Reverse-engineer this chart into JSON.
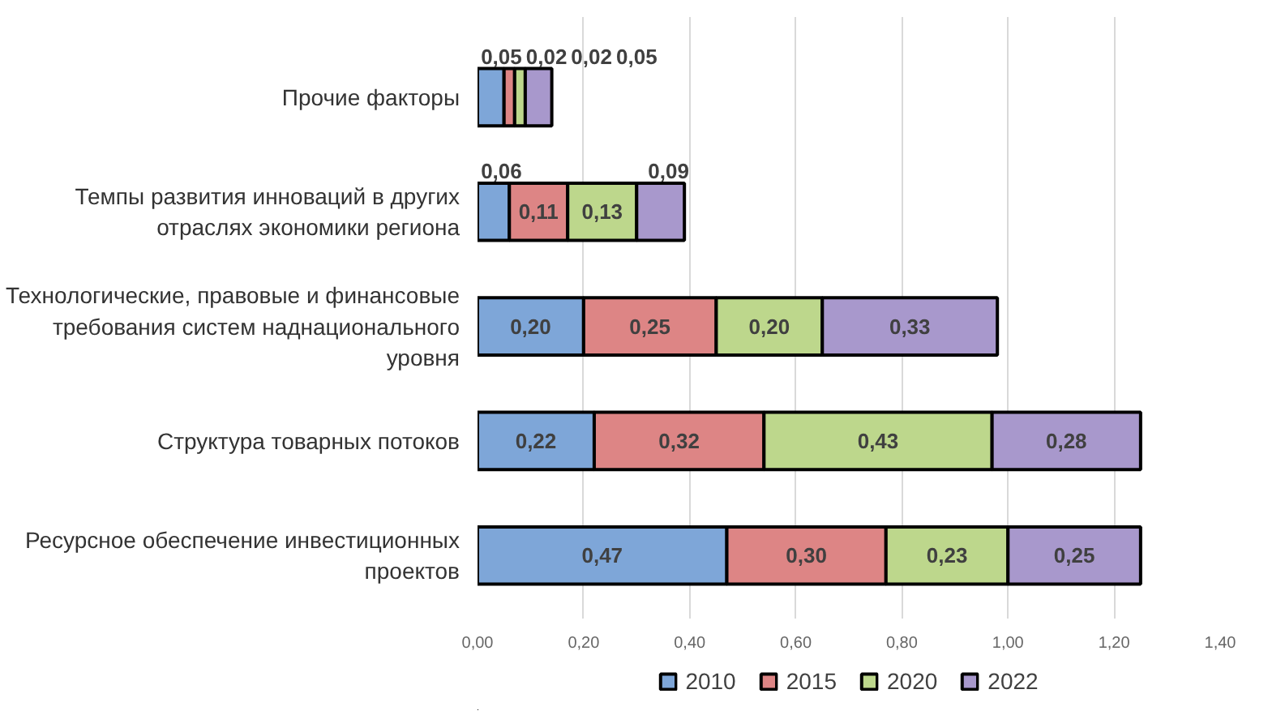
{
  "chart_data": {
    "type": "bar",
    "orientation": "horizontal",
    "stacked": true,
    "categories": [
      "Прочие факторы",
      "Темпы развития инноваций в других отраслях экономики региона",
      "Технологические, правовые и финансовые требования систем наднационального уровня",
      "Структура товарных потоков",
      "Ресурсное обеспечение инвестиционных проектов"
    ],
    "series": [
      {
        "name": "2010",
        "color": "#7ea6d8",
        "values": [
          0.05,
          0.06,
          0.2,
          0.22,
          0.47
        ],
        "value_labels": [
          "0,05",
          "0,06",
          "0,20",
          "0,22",
          "0,47"
        ]
      },
      {
        "name": "2015",
        "color": "#dd8585",
        "values": [
          0.02,
          0.11,
          0.25,
          0.32,
          0.3
        ],
        "value_labels": [
          "0,02",
          "0,11",
          "0,25",
          "0,32",
          "0,30"
        ]
      },
      {
        "name": "2020",
        "color": "#bdd78c",
        "values": [
          0.02,
          0.13,
          0.2,
          0.43,
          0.23
        ],
        "value_labels": [
          "0,02",
          "0,13",
          "0,20",
          "0,43",
          "0,23"
        ]
      },
      {
        "name": "2022",
        "color": "#a898cc",
        "values": [
          0.05,
          0.09,
          0.33,
          0.28,
          0.25
        ],
        "value_labels": [
          "0,05",
          "0,09",
          "0,33",
          "0,28",
          "0,25"
        ]
      }
    ],
    "xlim": [
      0,
      1.4
    ],
    "xticks": [
      {
        "value": 0,
        "label": "0,00"
      },
      {
        "value": 0.2,
        "label": "0,20"
      },
      {
        "value": 0.4,
        "label": "0,40"
      },
      {
        "value": 0.6,
        "label": "0,60"
      },
      {
        "value": 0.8,
        "label": "0,80"
      },
      {
        "value": 1.0,
        "label": "1,00"
      },
      {
        "value": 1.2,
        "label": "1,20"
      },
      {
        "value": 1.4,
        "label": "1,40"
      }
    ],
    "grid": "x",
    "legend": "bottom"
  }
}
